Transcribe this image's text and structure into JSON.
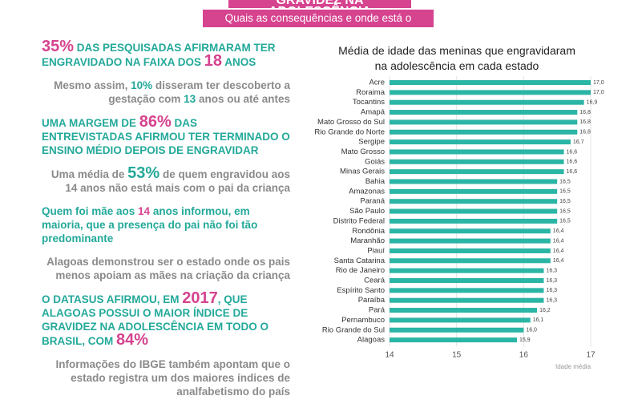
{
  "header": {
    "title": "GRAVIDEZ NA ADOLESCÊNCIA",
    "subtitle": "Quais as consequências e onde está o problema?"
  },
  "facts": [
    {
      "tone": "teal",
      "caps": true,
      "segments": [
        {
          "text": "35%",
          "color": "#d6438f",
          "big": true
        },
        {
          "text": " DAS PESQUISADAS AFIRMARAM TER ENGRAVIDADO NA FAIXA DOS "
        },
        {
          "text": "18",
          "color": "#d6438f",
          "big": true
        },
        {
          "text": " ANOS"
        }
      ]
    },
    {
      "tone": "gray",
      "segments": [
        {
          "text": "Mesmo assim, "
        },
        {
          "text": "10%",
          "color": "#23a99a"
        },
        {
          "text": " disseram ter descoberto a gestação com "
        },
        {
          "text": "13",
          "color": "#23a99a"
        },
        {
          "text": " anos ou até antes"
        }
      ]
    },
    {
      "tone": "teal",
      "caps": true,
      "segments": [
        {
          "text": "UMA MARGEM DE "
        },
        {
          "text": "86%",
          "color": "#d6438f",
          "big": true
        },
        {
          "text": " DAS ENTREVISTADAS AFIRMOU TER TERMINADO O ENSINO MÉDIO DEPOIS DE ENGRAVIDAR"
        }
      ]
    },
    {
      "tone": "gray",
      "segments": [
        {
          "text": "Uma média de "
        },
        {
          "text": "53%",
          "color": "#23a99a",
          "big": true
        },
        {
          "text": " de quem engravidou aos 14 anos não está mais com o pai da criança"
        }
      ]
    },
    {
      "tone": "teal",
      "segments": [
        {
          "text": "Quem foi mãe aos "
        },
        {
          "text": "14",
          "color": "#d6438f"
        },
        {
          "text": " anos informou, em maioria, que a presença do pai não foi tão predominante"
        }
      ]
    },
    {
      "tone": "gray",
      "segments": [
        {
          "text": "Alagoas demonstrou ser o estado onde os pais menos apoiam as mães na criação da criança"
        }
      ]
    },
    {
      "tone": "teal",
      "caps": true,
      "segments": [
        {
          "text": "O DATASUS AFIRMOU, EM "
        },
        {
          "text": "2017",
          "color": "#d6438f",
          "big": true
        },
        {
          "text": ", QUE ALAGOAS POSSUI O MAIOR ÍNDICE DE GRAVIDEZ NA ADOLESCÊNCIA EM TODO O BRASIL, COM "
        },
        {
          "text": "84%",
          "color": "#d6438f",
          "big": true
        }
      ]
    },
    {
      "tone": "gray",
      "segments": [
        {
          "text": "Informações do IBGE também apontam que o estado registra um dos maiores índices de analfabetismo do país"
        }
      ]
    }
  ],
  "chart_data": {
    "type": "barh",
    "title": "Média de idade das meninas que engravidaram na adolescência em cada estado",
    "x_label": "Idade média",
    "categories": [
      "Acre",
      "Roraima",
      "Tocantins",
      "Amapá",
      "Mato Grosso do Sul",
      "Rio Grande do Norte",
      "Sergipe",
      "Mato Grosso",
      "Goiás",
      "Minas Gerais",
      "Bahia",
      "Amazonas",
      "Paraná",
      "São Paulo",
      "Distrito Federal",
      "Rondônia",
      "Maranhão",
      "Piauí",
      "Santa Catarina",
      "Rio de Janeiro",
      "Ceará",
      "Espírito Santo",
      "Paraíba",
      "Pará",
      "Pernambuco",
      "Rio Grande do Sul",
      "Alagoas"
    ],
    "values": [
      17.0,
      17.0,
      16.9,
      16.8,
      16.8,
      16.8,
      16.7,
      16.6,
      16.6,
      16.6,
      16.5,
      16.5,
      16.5,
      16.5,
      16.5,
      16.4,
      16.4,
      16.4,
      16.4,
      16.3,
      16.3,
      16.3,
      16.3,
      16.2,
      16.1,
      16.0,
      15.9
    ],
    "value_labels": [
      "17,0",
      "17,0",
      "16,9",
      "16,8",
      "16,8",
      "16,8",
      "16,7",
      "16,6",
      "16,6",
      "16,6",
      "16,5",
      "16,5",
      "16,5",
      "16,5",
      "16,5",
      "16,4",
      "16,4",
      "16,4",
      "16,4",
      "16,3",
      "16,3",
      "16,3",
      "16,3",
      "16,2",
      "16,1",
      "16,0",
      "15,9"
    ],
    "color": "#2bb5a5",
    "xlim": [
      14,
      17
    ],
    "xticks": [
      14,
      15,
      16,
      17
    ],
    "grid": true
  }
}
